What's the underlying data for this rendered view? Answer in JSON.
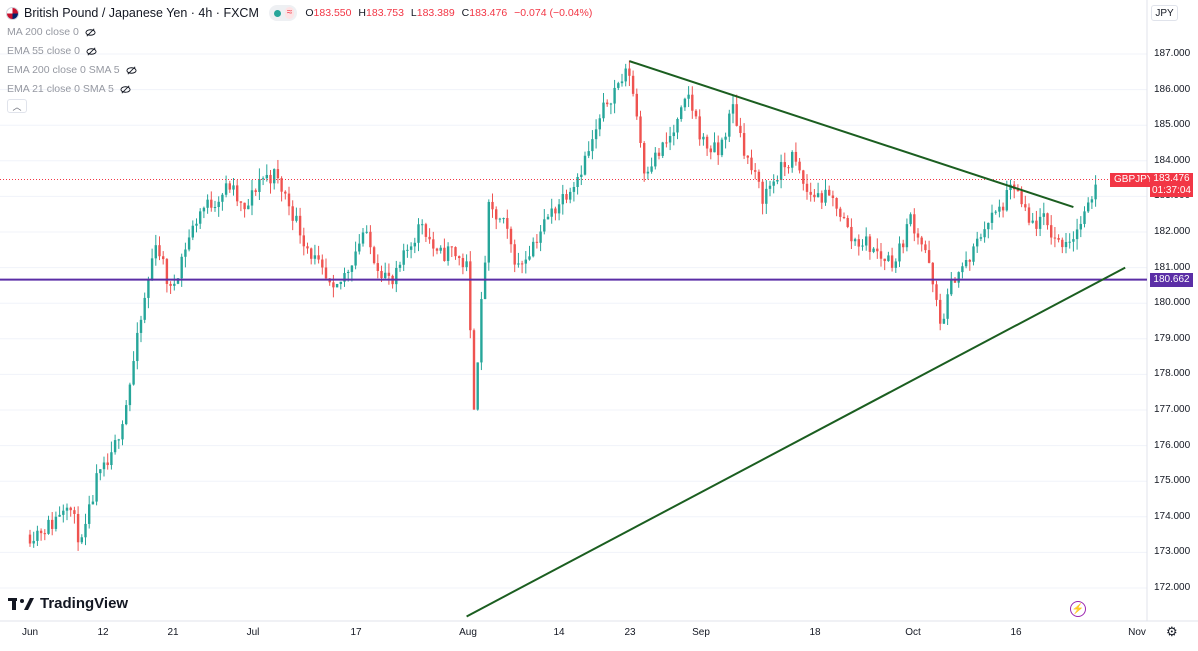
{
  "header": {
    "symbol_title": "British Pound / Japanese Yen · 4h · FXCM",
    "status_glyph": "≈",
    "ohlc": {
      "o_label": "O",
      "o_value": "183.550",
      "h_label": "H",
      "h_value": "183.753",
      "l_label": "L",
      "l_value": "183.389",
      "c_label": "C",
      "c_value": "183.476",
      "change": "−0.074 (−0.04%)"
    }
  },
  "indicators": [
    {
      "label": "MA 200 close 0"
    },
    {
      "label": "EMA 55 close 0"
    },
    {
      "label": "EMA 200 close 0 SMA 5"
    },
    {
      "label": "EMA 21 close 0 SMA 5"
    }
  ],
  "currency_button": "JPY",
  "watermark": "TradingView",
  "price_tag": {
    "symbol": "GBPJPY",
    "price": "183.476",
    "countdown": "01:37:04"
  },
  "hline_tag": "180.662",
  "colors": {
    "up": "#26a69a",
    "down": "#ef5350",
    "trendline": "#1b5e20",
    "support": "#5b2ea6",
    "accent": "#f23645"
  },
  "chart_data": {
    "type": "candlestick",
    "title": "British Pound / Japanese Yen · 4h · FXCM",
    "yaxis": {
      "ticks": [
        "187.000",
        "186.000",
        "185.000",
        "184.000",
        "183.000",
        "182.000",
        "181.000",
        "180.000",
        "179.000",
        "178.000",
        "177.000",
        "176.000",
        "175.000",
        "174.000",
        "173.000",
        "172.000"
      ],
      "ylim": [
        171.2,
        187.8
      ]
    },
    "xaxis": {
      "ticks": [
        "Jun",
        "12",
        "21",
        "Jul",
        "17",
        "Aug",
        "14",
        "23",
        "Sep",
        "18",
        "Oct",
        "16",
        "Nov"
      ]
    },
    "last_close": 183.476,
    "horizontal_line": 180.662,
    "trendlines": [
      {
        "name": "descending resistance",
        "from": {
          "date": "Aug 21",
          "price": 186.8
        },
        "to": {
          "date": "Oct 20",
          "price": 182.7
        }
      },
      {
        "name": "ascending support",
        "from": {
          "date": "Jul 30",
          "price": 171.2
        },
        "to": {
          "date": "Oct 27",
          "price": 181.0
        }
      }
    ],
    "price_path": [
      {
        "date": "Jun 1",
        "close": 173.5
      },
      {
        "date": "Jun 4",
        "close": 173.8
      },
      {
        "date": "Jun 6",
        "close": 174.5
      },
      {
        "date": "Jun 8",
        "close": 173.2
      },
      {
        "date": "Jun 10",
        "close": 175.0
      },
      {
        "date": "Jun 12",
        "close": 175.6
      },
      {
        "date": "Jun 14",
        "close": 177.2
      },
      {
        "date": "Jun 16",
        "close": 179.5
      },
      {
        "date": "Jun 18",
        "close": 181.8
      },
      {
        "date": "Jun 20",
        "close": 180.3
      },
      {
        "date": "Jun 22",
        "close": 181.6
      },
      {
        "date": "Jun 24",
        "close": 182.6
      },
      {
        "date": "Jun 26",
        "close": 182.9
      },
      {
        "date": "Jun 28",
        "close": 183.3
      },
      {
        "date": "Jun 30",
        "close": 182.5
      },
      {
        "date": "Jul 2",
        "close": 183.5
      },
      {
        "date": "Jul 4",
        "close": 183.6
      },
      {
        "date": "Jul 6",
        "close": 182.8
      },
      {
        "date": "Jul 8",
        "close": 181.8
      },
      {
        "date": "Jul 10",
        "close": 181.0
      },
      {
        "date": "Jul 12",
        "close": 180.2
      },
      {
        "date": "Jul 14",
        "close": 181.0
      },
      {
        "date": "Jul 16",
        "close": 182.0
      },
      {
        "date": "Jul 18",
        "close": 181.1
      },
      {
        "date": "Jul 20",
        "close": 180.5
      },
      {
        "date": "Jul 22",
        "close": 181.5
      },
      {
        "date": "Jul 24",
        "close": 182.3
      },
      {
        "date": "Jul 26",
        "close": 181.3
      },
      {
        "date": "Jul 28",
        "close": 181.5
      },
      {
        "date": "Jul 30",
        "close": 181.0
      },
      {
        "date": "Jul 31",
        "close": 177.2
      },
      {
        "date": "Aug 2",
        "close": 182.6
      },
      {
        "date": "Aug 4",
        "close": 182.2
      },
      {
        "date": "Aug 6",
        "close": 181.0
      },
      {
        "date": "Aug 8",
        "close": 181.7
      },
      {
        "date": "Aug 10",
        "close": 182.4
      },
      {
        "date": "Aug 12",
        "close": 183.0
      },
      {
        "date": "Aug 14",
        "close": 183.6
      },
      {
        "date": "Aug 16",
        "close": 184.5
      },
      {
        "date": "Aug 18",
        "close": 185.7
      },
      {
        "date": "Aug 20",
        "close": 186.3
      },
      {
        "date": "Aug 21",
        "close": 186.5
      },
      {
        "date": "Aug 22",
        "close": 185.3
      },
      {
        "date": "Aug 23",
        "close": 183.8
      },
      {
        "date": "Aug 25",
        "close": 184.2
      },
      {
        "date": "Aug 27",
        "close": 184.8
      },
      {
        "date": "Aug 29",
        "close": 185.8
      },
      {
        "date": "Aug 31",
        "close": 184.5
      },
      {
        "date": "Sep 2",
        "close": 184.2
      },
      {
        "date": "Sep 4",
        "close": 185.5
      },
      {
        "date": "Sep 6",
        "close": 184.0
      },
      {
        "date": "Sep 8",
        "close": 183.0
      },
      {
        "date": "Sep 10",
        "close": 183.6
      },
      {
        "date": "Sep 12",
        "close": 184.1
      },
      {
        "date": "Sep 14",
        "close": 183.1
      },
      {
        "date": "Sep 16",
        "close": 183.0
      },
      {
        "date": "Sep 18",
        "close": 182.8
      },
      {
        "date": "Sep 20",
        "close": 181.8
      },
      {
        "date": "Sep 22",
        "close": 181.7
      },
      {
        "date": "Sep 24",
        "close": 181.3
      },
      {
        "date": "Sep 26",
        "close": 181.2
      },
      {
        "date": "Sep 28",
        "close": 182.4
      },
      {
        "date": "Sep 30",
        "close": 181.5
      },
      {
        "date": "Oct 2",
        "close": 179.4
      },
      {
        "date": "Oct 4",
        "close": 180.8
      },
      {
        "date": "Oct 6",
        "close": 181.2
      },
      {
        "date": "Oct 8",
        "close": 182.2
      },
      {
        "date": "Oct 10",
        "close": 182.6
      },
      {
        "date": "Oct 12",
        "close": 183.3
      },
      {
        "date": "Oct 14",
        "close": 182.2
      },
      {
        "date": "Oct 16",
        "close": 182.3
      },
      {
        "date": "Oct 18",
        "close": 181.7
      },
      {
        "date": "Oct 20",
        "close": 181.9
      },
      {
        "date": "Oct 22",
        "close": 182.6
      },
      {
        "date": "Oct 23",
        "close": 183.476
      }
    ]
  }
}
